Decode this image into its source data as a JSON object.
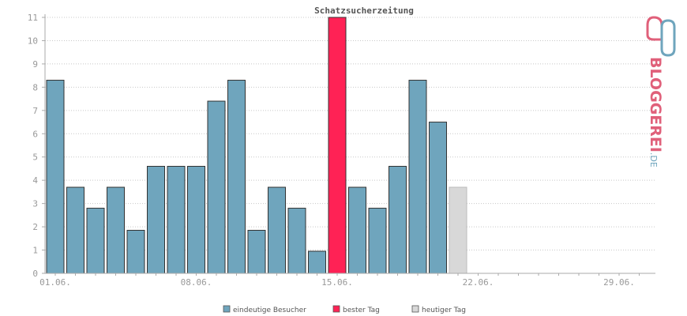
{
  "chart_data": {
    "type": "bar",
    "title": "Schatzsucherzeitung",
    "ylim": [
      0,
      11
    ],
    "yticks": [
      0,
      1,
      2,
      3,
      4,
      5,
      6,
      7,
      8,
      9,
      10,
      11
    ],
    "grid": true,
    "days": 30,
    "xtick_labels": [
      {
        "day": 1,
        "label": "01.06."
      },
      {
        "day": 8,
        "label": "08.06."
      },
      {
        "day": 15,
        "label": "15.06."
      },
      {
        "day": 22,
        "label": "22.06."
      },
      {
        "day": 29,
        "label": "29.06."
      }
    ],
    "values": [
      8.3,
      3.7,
      2.8,
      3.7,
      1.85,
      4.6,
      4.6,
      4.6,
      7.4,
      8.3,
      1.85,
      3.7,
      2.8,
      0.95,
      11,
      3.7,
      2.8,
      4.6,
      8.3,
      6.5,
      3.7
    ],
    "best_day_index": 14,
    "today_index": 20,
    "colors": {
      "visitors": "#6fa5bd",
      "best": "#ff2255",
      "today": "#d8d8d8",
      "bar_stroke": "#333333"
    },
    "legend": [
      {
        "label": "eindeutige Besucher",
        "color": "#6fa5bd"
      },
      {
        "label": "bester Tag",
        "color": "#ff2255"
      },
      {
        "label": "heutiger Tag",
        "color": "#d8d8d8"
      }
    ],
    "legend_placement": "bottom"
  },
  "logo": {
    "main": "BLOGGEREI",
    "suffix": ".DE",
    "color_main": "#e0607a",
    "color_suffix": "#6fa5bd"
  }
}
